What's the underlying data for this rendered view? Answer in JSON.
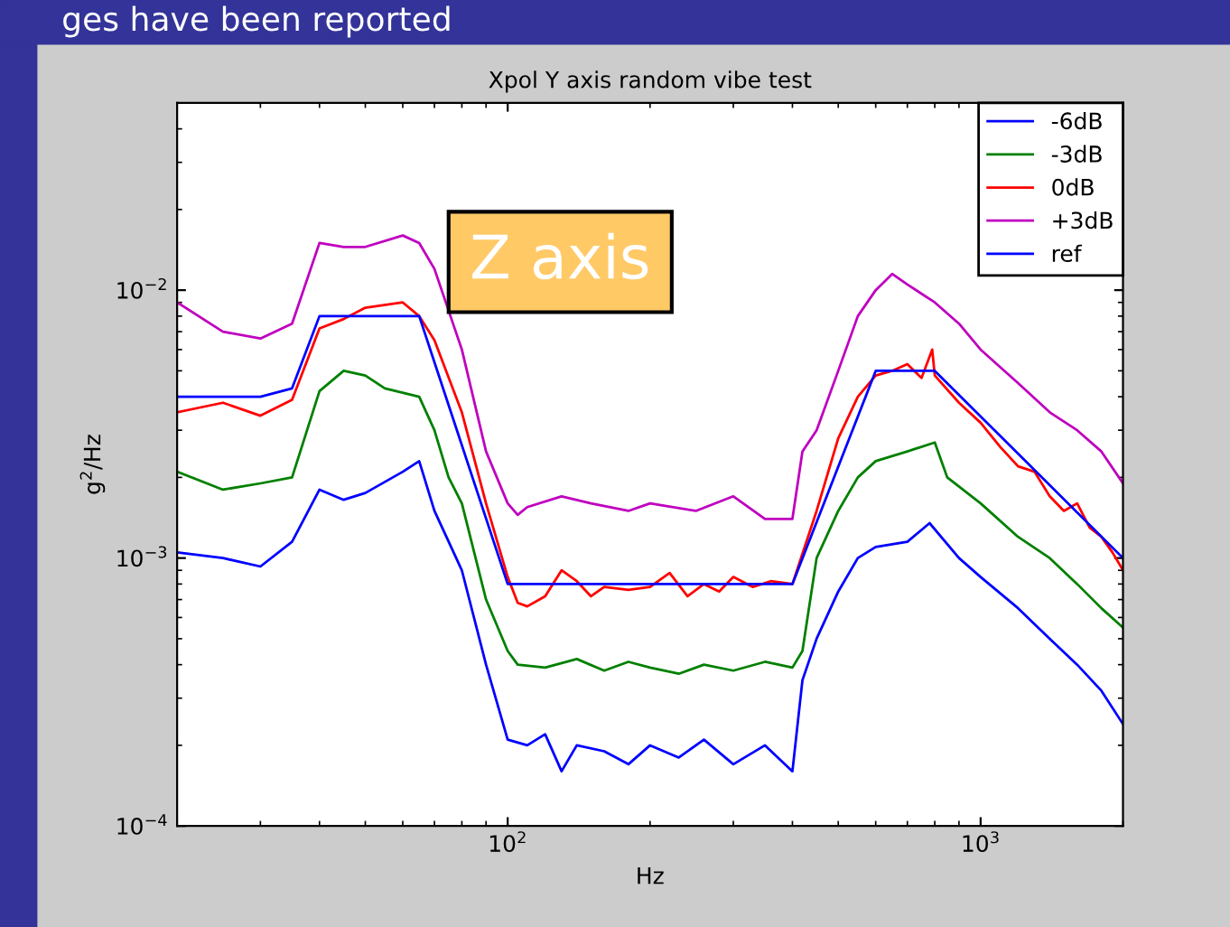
{
  "chart_data": {
    "type": "line",
    "title": "Xpol Y axis random vibe test",
    "xlabel": "Hz",
    "ylabel": "g$^{2}$/Hz",
    "annotations": [
      "Z axis",
      "ges have been reported"
    ],
    "log": "xy",
    "grid": false,
    "legend": "top right",
    "line_style": "solid",
    "xlim": [
      20,
      2000
    ],
    "ylim": [
      0.0001,
      0.05
    ],
    "xticks": [
      {
        "value": 100,
        "label": "10$^{2}$"
      },
      {
        "value": 1000,
        "label": "10$^{3}$"
      }
    ],
    "yticks": [
      {
        "value": 0.0001,
        "label": "10$^{−4}$"
      },
      {
        "value": 0.001,
        "label": "10$^{−3}$"
      },
      {
        "value": 0.01,
        "label": "10$^{−2}$"
      }
    ],
    "series": [
      {
        "name": "-6dB",
        "color": "#0000ff",
        "x": [
          20,
          25,
          30,
          35,
          40,
          45,
          50,
          60,
          65,
          70,
          80,
          90,
          100,
          110,
          120,
          130,
          140,
          160,
          180,
          200,
          230,
          260,
          300,
          350,
          400,
          420,
          450,
          500,
          550,
          600,
          700,
          780,
          900,
          1000,
          1200,
          1400,
          1600,
          1800,
          2000
        ],
        "values": [
          0.00105,
          0.001,
          0.00093,
          0.00115,
          0.0018,
          0.00165,
          0.00175,
          0.0021,
          0.0023,
          0.0015,
          0.0009,
          0.0004,
          0.00021,
          0.0002,
          0.00022,
          0.00016,
          0.0002,
          0.00019,
          0.00017,
          0.0002,
          0.00018,
          0.00021,
          0.00017,
          0.0002,
          0.00016,
          0.00035,
          0.0005,
          0.00075,
          0.001,
          0.0011,
          0.00115,
          0.00135,
          0.001,
          0.00085,
          0.00065,
          0.0005,
          0.0004,
          0.00032,
          0.00024
        ]
      },
      {
        "name": "-3dB",
        "color": "#008000",
        "x": [
          20,
          25,
          30,
          35,
          40,
          45,
          50,
          55,
          65,
          70,
          75,
          80,
          90,
          100,
          105,
          120,
          140,
          160,
          180,
          200,
          230,
          260,
          300,
          350,
          400,
          420,
          450,
          500,
          550,
          600,
          700,
          800,
          850,
          1000,
          1200,
          1400,
          1600,
          1800,
          2000
        ],
        "values": [
          0.0021,
          0.0018,
          0.0019,
          0.002,
          0.0042,
          0.005,
          0.0048,
          0.0043,
          0.004,
          0.003,
          0.002,
          0.0016,
          0.0007,
          0.00045,
          0.0004,
          0.00039,
          0.00042,
          0.00038,
          0.00041,
          0.00039,
          0.00037,
          0.0004,
          0.00038,
          0.00041,
          0.00039,
          0.00045,
          0.001,
          0.0015,
          0.002,
          0.0023,
          0.0025,
          0.0027,
          0.002,
          0.0016,
          0.0012,
          0.001,
          0.0008,
          0.00065,
          0.00055
        ]
      },
      {
        "name": "0dB",
        "color": "#ff0000",
        "x": [
          20,
          25,
          30,
          35,
          40,
          45,
          50,
          60,
          65,
          70,
          80,
          90,
          100,
          105,
          110,
          120,
          130,
          140,
          150,
          160,
          180,
          200,
          220,
          240,
          260,
          280,
          300,
          330,
          360,
          400,
          450,
          500,
          550,
          600,
          650,
          700,
          750,
          790,
          800,
          900,
          1000,
          1100,
          1200,
          1300,
          1400,
          1500,
          1600,
          1700,
          1800,
          1900,
          2000
        ],
        "values": [
          0.0035,
          0.0038,
          0.0034,
          0.0039,
          0.0072,
          0.0078,
          0.0086,
          0.009,
          0.008,
          0.0065,
          0.0035,
          0.0016,
          0.00085,
          0.00068,
          0.00066,
          0.00072,
          0.0009,
          0.00082,
          0.00072,
          0.00078,
          0.00076,
          0.00078,
          0.00088,
          0.00072,
          0.0008,
          0.00075,
          0.00085,
          0.00078,
          0.00082,
          0.0008,
          0.0015,
          0.0028,
          0.004,
          0.0048,
          0.005,
          0.0053,
          0.0047,
          0.006,
          0.0048,
          0.0038,
          0.0032,
          0.0026,
          0.0022,
          0.0021,
          0.0017,
          0.0015,
          0.0016,
          0.0013,
          0.0012,
          0.00105,
          0.0009
        ]
      },
      {
        "name": "+3dB",
        "color": "#bf00bf",
        "x": [
          20,
          25,
          30,
          35,
          40,
          45,
          50,
          60,
          65,
          70,
          80,
          90,
          100,
          105,
          110,
          130,
          150,
          180,
          200,
          250,
          300,
          350,
          400,
          420,
          450,
          500,
          550,
          600,
          650,
          700,
          800,
          900,
          1000,
          1200,
          1400,
          1600,
          1800,
          2000
        ],
        "values": [
          0.009,
          0.007,
          0.0066,
          0.0075,
          0.015,
          0.0145,
          0.0145,
          0.016,
          0.015,
          0.012,
          0.006,
          0.0025,
          0.0016,
          0.00145,
          0.00155,
          0.0017,
          0.0016,
          0.0015,
          0.0016,
          0.0015,
          0.0017,
          0.0014,
          0.0014,
          0.0025,
          0.003,
          0.005,
          0.008,
          0.01,
          0.0115,
          0.0105,
          0.009,
          0.0075,
          0.006,
          0.0045,
          0.0035,
          0.003,
          0.0025,
          0.0019
        ]
      },
      {
        "name": "ref",
        "color": "#0000ff",
        "x": [
          20,
          30,
          35,
          40,
          65,
          100,
          400,
          600,
          800,
          2000
        ],
        "values": [
          0.004,
          0.004,
          0.0043,
          0.008,
          0.008,
          0.0008,
          0.0008,
          0.005,
          0.005,
          0.001
        ]
      }
    ]
  }
}
